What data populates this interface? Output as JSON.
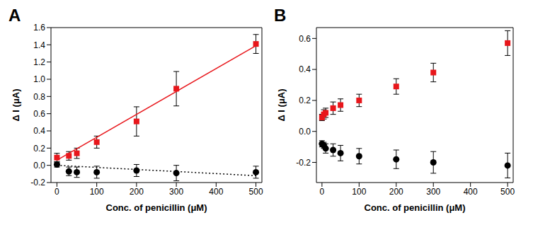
{
  "chart_data": [
    {
      "type": "scatter",
      "title": "A",
      "x_label": "Conc. of penicillin (μM)",
      "y_label": "Δ I (μA)",
      "xlim": [
        -15,
        515
      ],
      "xticks": [
        0,
        100,
        200,
        300,
        400,
        500
      ],
      "ylim": [
        -0.2,
        1.6
      ],
      "yticks": [
        -0.2,
        {
          "value": 0,
          "label": "0.0"
        },
        0.2,
        0.4,
        0.6,
        0.8,
        {
          "value": 1,
          "label": "1.0"
        },
        1.2,
        1.4,
        1.6
      ],
      "series": [
        {
          "type": "scatter",
          "color": "#e8161b",
          "marker": "square",
          "x": [
            0,
            30,
            50,
            100,
            200,
            300,
            500
          ],
          "values": [
            0.09,
            0.11,
            0.14,
            0.27,
            0.51,
            0.89,
            1.41
          ],
          "error": [
            0.05,
            0.05,
            0.06,
            0.07,
            0.17,
            0.2,
            0.11
          ]
        },
        {
          "type": "scatter",
          "color": "#000000",
          "marker": "circle",
          "x": [
            0,
            30,
            50,
            100,
            200,
            300,
            500
          ],
          "values": [
            0.01,
            -0.07,
            -0.08,
            -0.08,
            -0.06,
            -0.09,
            -0.08
          ],
          "error": [
            0.03,
            0.05,
            0.06,
            0.07,
            0.07,
            0.09,
            0.07
          ]
        },
        {
          "type": "line",
          "color": "#e8161b",
          "line_style": "solid",
          "x": [
            0,
            500
          ],
          "values": [
            0.06,
            1.39
          ]
        },
        {
          "type": "line",
          "color": "#000000",
          "line_style": "dotted",
          "x": [
            0,
            500
          ],
          "values": [
            0.0,
            -0.12
          ]
        }
      ]
    },
    {
      "type": "scatter",
      "title": "B",
      "x_label": "Conc. of penicillin (μM)",
      "y_label": "Δ I (μA)",
      "xlim": [
        -15,
        515
      ],
      "xticks": [
        0,
        100,
        200,
        300,
        400,
        500
      ],
      "ylim": [
        -0.33,
        0.67
      ],
      "yticks": [
        -0.2,
        {
          "value": 0,
          "label": "0.0"
        },
        0.2,
        0.4,
        0.6
      ],
      "series": [
        {
          "type": "scatter",
          "color": "#e8161b",
          "marker": "square",
          "x": [
            0,
            5,
            10,
            30,
            50,
            100,
            200,
            300,
            500
          ],
          "values": [
            0.09,
            0.11,
            0.12,
            0.15,
            0.17,
            0.2,
            0.29,
            0.38,
            0.57
          ],
          "error": [
            0.02,
            0.03,
            0.03,
            0.04,
            0.04,
            0.04,
            0.05,
            0.06,
            0.08
          ]
        },
        {
          "type": "scatter",
          "color": "#000000",
          "marker": "circle",
          "x": [
            0,
            5,
            10,
            30,
            50,
            100,
            200,
            300,
            500
          ],
          "values": [
            -0.08,
            -0.09,
            -0.11,
            -0.12,
            -0.14,
            -0.16,
            -0.18,
            -0.2,
            -0.22
          ],
          "error": [
            0.02,
            0.02,
            0.03,
            0.04,
            0.05,
            0.05,
            0.06,
            0.07,
            0.08
          ]
        }
      ]
    }
  ]
}
